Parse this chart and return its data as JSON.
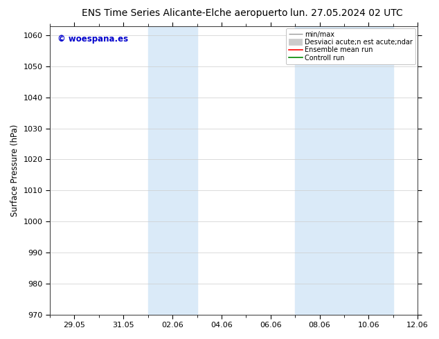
{
  "title_left": "ENS Time Series Alicante-Elche aeropuerto",
  "title_right": "lun. 27.05.2024 02 UTC",
  "ylabel": "Surface Pressure (hPa)",
  "ylim": [
    970,
    1063
  ],
  "yticks": [
    970,
    980,
    990,
    1000,
    1010,
    1020,
    1030,
    1040,
    1050,
    1060
  ],
  "x_tick_labels": [
    "29.05",
    "31.05",
    "02.06",
    "04.06",
    "06.06",
    "08.06",
    "10.06",
    "12.06"
  ],
  "x_tick_positions": [
    1,
    3,
    5,
    7,
    9,
    11,
    13,
    15
  ],
  "x_minor_positions": [
    0,
    2,
    4,
    6,
    8,
    10,
    12,
    14
  ],
  "xlim": [
    0,
    15
  ],
  "shade_bands": [
    {
      "x_start": 4,
      "x_end": 6
    },
    {
      "x_start": 10,
      "x_end": 14
    }
  ],
  "shade_color": "#daeaf8",
  "background_color": "#ffffff",
  "watermark": "© woespana.es",
  "watermark_color": "#0000cc",
  "legend_labels": [
    "min/max",
    "Desviaci acute;n est acute;ndar",
    "Ensemble mean run",
    "Controll run"
  ],
  "legend_colors": [
    "#999999",
    "#cccccc",
    "#ff0000",
    "#008800"
  ],
  "grid_color": "#cccccc",
  "tick_label_fontsize": 8,
  "title_fontsize": 10,
  "ylabel_fontsize": 8.5,
  "figure_width": 6.34,
  "figure_height": 4.9,
  "dpi": 100
}
